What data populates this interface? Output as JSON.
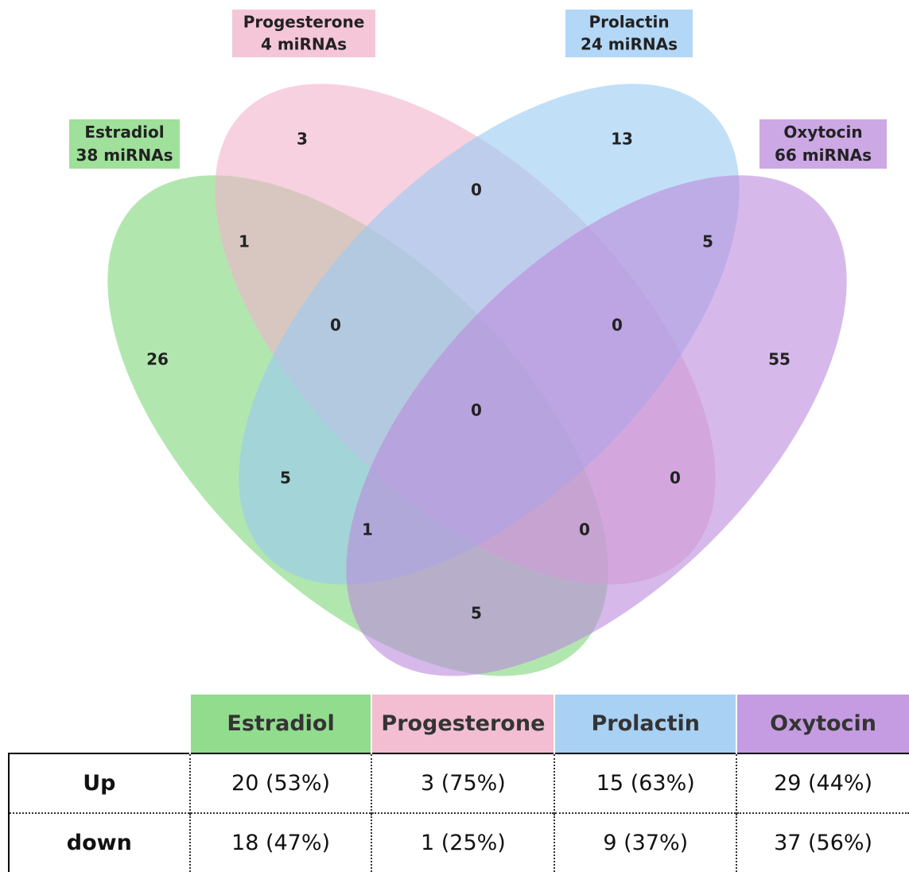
{
  "sets": [
    {
      "name": "Estradiol",
      "count": "38 miRNAs",
      "color": "#7fd67a"
    },
    {
      "name": "Progesterone",
      "count": "4 miRNAs",
      "color": "#f2b3cb"
    },
    {
      "name": "Prolactin",
      "count": "24 miRNAs",
      "color": "#99c9f3"
    },
    {
      "name": "Oxytocin",
      "count": "66 miRNAs",
      "color": "#bb8bdc"
    }
  ],
  "regions": [
    3,
    13,
    26,
    55,
    0,
    1,
    5,
    0,
    0,
    0,
    5,
    0,
    1,
    0,
    5
  ],
  "table": {
    "header": [
      "Estradiol",
      "Progesterone",
      "Prolactin",
      "Oxytocin"
    ],
    "rows": [
      [
        "Up",
        "20 (53%)",
        "3 (75%)",
        "15 (63%)",
        "29 (44%)"
      ],
      [
        "down",
        "18 (47%)",
        "1 (25%)",
        "9 (37%)",
        "37 (56%)"
      ]
    ]
  }
}
